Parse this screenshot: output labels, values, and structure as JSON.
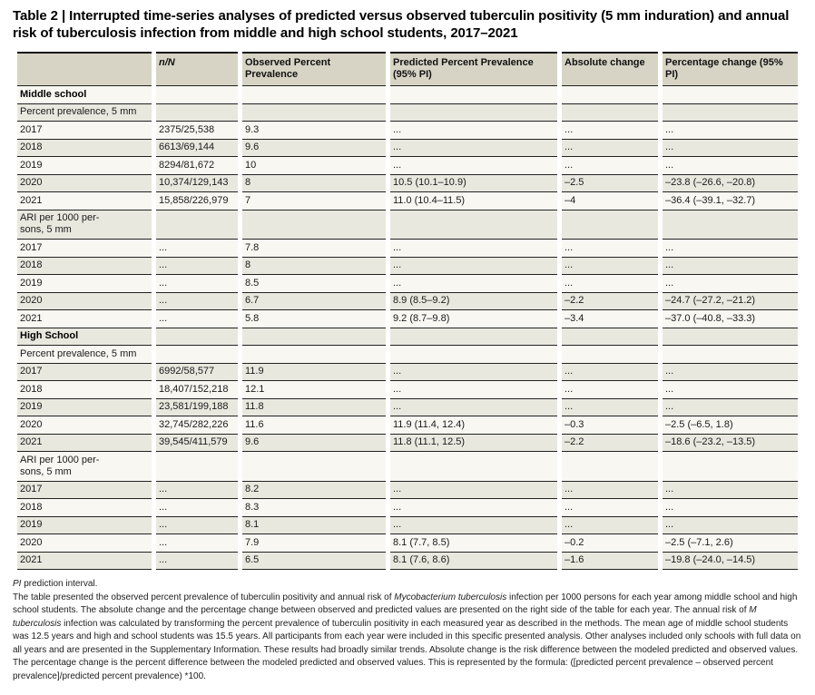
{
  "title": {
    "prefix": "Table 2",
    "separator": "|",
    "text": "Interrupted time-series analyses of predicted versus observed tuberculin positivity (5 mm induration) and annual risk of tuberculosis infection from middle and high school students, 2017–2021"
  },
  "table": {
    "columns": [
      "",
      "n/N",
      "Observed Percent Prevalence",
      "Predicted Percent Prevalence (95% PI)",
      "Absolute change",
      "Percentage change (95% PI)"
    ],
    "rows": [
      {
        "type": "section",
        "cells": [
          "Middle school",
          "",
          "",
          "",
          "",
          ""
        ]
      },
      {
        "type": "sub",
        "cells": [
          "Percent prevalence, 5 mm",
          "",
          "",
          "",
          "",
          ""
        ]
      },
      {
        "type": "data",
        "cells": [
          "2017",
          "2375/25,538",
          "9.3",
          "...",
          "...",
          "..."
        ]
      },
      {
        "type": "data",
        "cells": [
          "2018",
          "6613/69,144",
          "9.6",
          "...",
          "...",
          "..."
        ]
      },
      {
        "type": "data",
        "cells": [
          "2019",
          "8294/81,672",
          "10",
          "...",
          "...",
          "..."
        ]
      },
      {
        "type": "data",
        "cells": [
          "2020",
          "10,374/129,143",
          "8",
          "10.5 (10.1–10.9)",
          "–2.5",
          "–23.8 (–26.6, –20.8)"
        ]
      },
      {
        "type": "data",
        "cells": [
          "2021",
          "15,858/226,979",
          "7",
          "11.0 (10.4–11.5)",
          "–4",
          "–36.4 (–39.1, –32.7)"
        ]
      },
      {
        "type": "sub",
        "cells": [
          "ARI per 1000 per-\nsons, 5 mm",
          "",
          "",
          "",
          "",
          ""
        ]
      },
      {
        "type": "data",
        "cells": [
          "2017",
          "...",
          "7.8",
          "...",
          "...",
          "..."
        ]
      },
      {
        "type": "data",
        "cells": [
          "2018",
          "...",
          "8",
          "...",
          "...",
          "..."
        ]
      },
      {
        "type": "data",
        "cells": [
          "2019",
          "...",
          "8.5",
          "...",
          "...",
          "..."
        ]
      },
      {
        "type": "data",
        "cells": [
          "2020",
          "...",
          "6.7",
          "8.9 (8.5–9.2)",
          "–2.2",
          "–24.7 (–27.2, –21.2)"
        ]
      },
      {
        "type": "data",
        "cells": [
          "2021",
          "...",
          "5.8",
          "9.2 (8.7–9.8)",
          "–3.4",
          "–37.0 (–40.8, –33.3)"
        ]
      },
      {
        "type": "section",
        "cells": [
          "High School",
          "",
          "",
          "",
          "",
          ""
        ]
      },
      {
        "type": "sub",
        "cells": [
          "Percent prevalence, 5 mm",
          "",
          "",
          "",
          "",
          ""
        ]
      },
      {
        "type": "data",
        "cells": [
          "2017",
          "6992/58,577",
          "11.9",
          "...",
          "...",
          "..."
        ]
      },
      {
        "type": "data",
        "cells": [
          "2018",
          "18,407/152,218",
          "12.1",
          "...",
          "...",
          "..."
        ]
      },
      {
        "type": "data",
        "cells": [
          "2019",
          "23,581/199,188",
          "11.8",
          "...",
          "...",
          "..."
        ]
      },
      {
        "type": "data",
        "cells": [
          "2020",
          "32,745/282,226",
          "11.6",
          "11.9 (11.4, 12.4)",
          "–0.3",
          "–2.5 (–6.5, 1.8)"
        ]
      },
      {
        "type": "data",
        "cells": [
          "2021",
          "39,545/411,579",
          "9.6",
          "11.8 (11.1, 12.5)",
          "–2.2",
          "–18.6 (–23.2, –13.5)"
        ]
      },
      {
        "type": "sub",
        "cells": [
          "ARI per 1000 per-\nsons, 5 mm",
          "",
          "",
          "",
          "",
          ""
        ]
      },
      {
        "type": "data",
        "cells": [
          "2017",
          "...",
          "8.2",
          "...",
          "...",
          "..."
        ]
      },
      {
        "type": "data",
        "cells": [
          "2018",
          "...",
          "8.3",
          "...",
          "...",
          "..."
        ]
      },
      {
        "type": "data",
        "cells": [
          "2019",
          "...",
          "8.1",
          "...",
          "...",
          "..."
        ]
      },
      {
        "type": "data",
        "cells": [
          "2020",
          "...",
          "7.9",
          "8.1 (7.7, 8.5)",
          "–0.2",
          "–2.5 (–7.1, 2.6)"
        ]
      },
      {
        "type": "data",
        "cells": [
          "2021",
          "...",
          "6.5",
          "8.1 (7.6, 8.6)",
          "–1.6",
          "–19.8 (–24.0, –14.5)"
        ]
      }
    ]
  },
  "footnote": {
    "abbr": [
      {
        "text": "PI",
        "italic": true
      },
      {
        "text": " prediction interval.",
        "italic": false
      }
    ],
    "body": [
      {
        "text": "The table presented the observed percent prevalence of tuberculin positivity and annual risk of ",
        "italic": false
      },
      {
        "text": "Mycobacterium tuberculosis",
        "italic": true
      },
      {
        "text": " infection per 1000 persons for each year among middle school and high school students. The absolute change and the percentage change between observed and predicted values are presented on the right side of the table for each year. The annual risk of ",
        "italic": false
      },
      {
        "text": "M tuberculosis",
        "italic": true
      },
      {
        "text": " infection was calculated by transforming the percent prevalence of tuberculin positivity in each measured year as described in the methods. The mean age of middle school students was 12.5 years and high and school students was 15.5 years. All participants from each year were included in this specific presented analysis. Other analyses included only schools with full data on all years and are presented in the Supplementary Information. These results had broadly similar trends. Absolute change is the risk difference between the modeled predicted and observed values. The percentage change is the percent difference between the modeled predicted and observed values. This is represented by the formula: ([predicted percent prevalence – observed percent prevalence]/predicted percent prevalence) *100.",
        "italic": false
      }
    ]
  },
  "colors": {
    "header_band": "#d7d4c5",
    "shaded_row": "#e9e8df",
    "plain_row": "#f8f7f2",
    "rule": "#222222"
  }
}
